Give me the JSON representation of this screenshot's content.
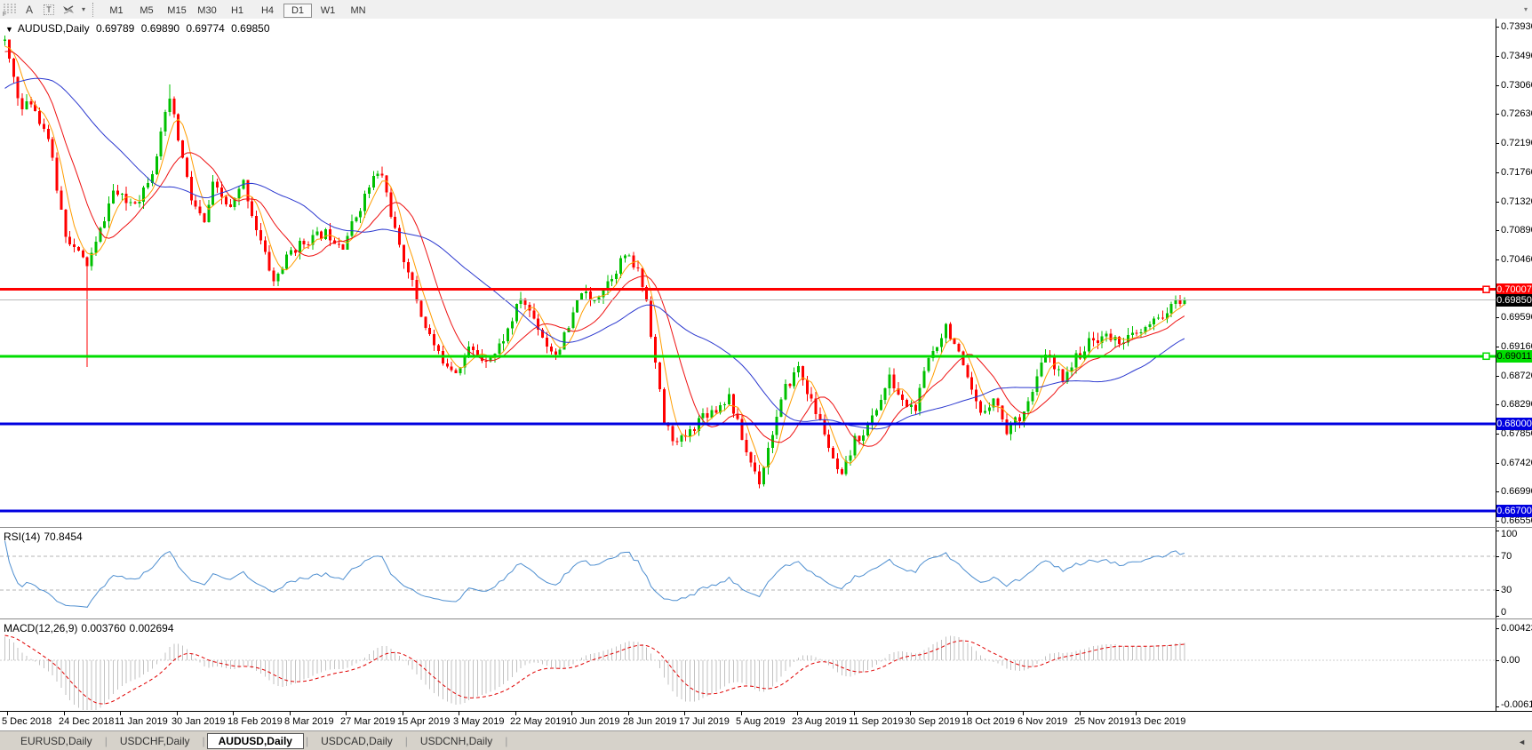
{
  "toolbar": {
    "icons": [
      {
        "name": "fibonacci-grid-icon",
        "badge": "F"
      },
      {
        "name": "text-icon",
        "glyph": "A"
      },
      {
        "name": "text-label-icon",
        "glyph": "T"
      },
      {
        "name": "arrow-objects-icon",
        "glyph": "arrows"
      }
    ],
    "dropdown_caret": "▾",
    "timeframes": [
      "M1",
      "M5",
      "M15",
      "M30",
      "H1",
      "H4",
      "D1",
      "W1",
      "MN"
    ],
    "active_timeframe": "D1",
    "overflow_caret": "▾"
  },
  "chart": {
    "menu_caret": "▼",
    "symbol_title": "AUDUSD,Daily",
    "ohlc": {
      "open": "0.69789",
      "high": "0.69890",
      "low": "0.69774",
      "close": "0.69850"
    },
    "price_ticks": [
      "0.73930",
      "0.73490",
      "0.73060",
      "0.72630",
      "0.72190",
      "0.71760",
      "0.71320",
      "0.70890",
      "0.70460",
      "0.69590",
      "0.69160",
      "0.68720",
      "0.68290",
      "0.67850",
      "0.67420",
      "0.66990",
      "0.66550"
    ],
    "hlines": [
      {
        "price": 0.70007,
        "label": "0.70007",
        "color": "#ff0000",
        "text_color": "#ffffff",
        "thickness": 3,
        "marker": true
      },
      {
        "price": 0.69011,
        "label": "0.69011",
        "color": "#00dd00",
        "text_color": "#000000",
        "thickness": 3,
        "marker": true
      },
      {
        "price": 0.68,
        "label": "0.68000",
        "color": "#0000e0",
        "text_color": "#ffffff",
        "thickness": 3,
        "marker": false
      },
      {
        "price": 0.667,
        "label": "0.66700",
        "color": "#0000e0",
        "text_color": "#ffffff",
        "thickness": 3,
        "marker": false
      }
    ],
    "last_price": {
      "value": 0.6985,
      "label": "0.69850",
      "line_color": "#b8b8b8",
      "badge_bg": "#000000",
      "badge_text": "#ffffff"
    },
    "candle_up_color": "#00c000",
    "candle_down_color": "#ff0000",
    "ma_lines": [
      {
        "name": "fast-ma",
        "period": 5,
        "color": "#ff9d00"
      },
      {
        "name": "mid-ma",
        "period": 12,
        "color": "#ee1111"
      },
      {
        "name": "slow-ma",
        "period": 34,
        "color": "#2b38cf"
      }
    ],
    "series": {
      "count": 273,
      "warmup_anchors": [
        [
          -45,
          0.7155
        ],
        [
          -35,
          0.7185
        ],
        [
          -25,
          0.7255
        ],
        [
          -15,
          0.732
        ],
        [
          -6,
          0.7355
        ],
        [
          -1,
          0.7368
        ]
      ],
      "anchors": [
        [
          0,
          0.7368
        ],
        [
          2,
          0.7318
        ],
        [
          4,
          0.7268
        ],
        [
          6,
          0.7282
        ],
        [
          8,
          0.7255
        ],
        [
          10,
          0.7228
        ],
        [
          12,
          0.7152
        ],
        [
          14,
          0.7085
        ],
        [
          16,
          0.7062
        ],
        [
          18,
          0.7045
        ],
        [
          19,
          0.7038
        ],
        [
          21,
          0.7068
        ],
        [
          25,
          0.7148
        ],
        [
          28,
          0.713
        ],
        [
          31,
          0.7138
        ],
        [
          34,
          0.718
        ],
        [
          36,
          0.723
        ],
        [
          38,
          0.7285
        ],
        [
          40,
          0.7225
        ],
        [
          43,
          0.7135
        ],
        [
          46,
          0.7098
        ],
        [
          48,
          0.7155
        ],
        [
          52,
          0.712
        ],
        [
          55,
          0.716
        ],
        [
          58,
          0.7092
        ],
        [
          62,
          0.7012
        ],
        [
          66,
          0.7058
        ],
        [
          70,
          0.7075
        ],
        [
          74,
          0.7085
        ],
        [
          78,
          0.7068
        ],
        [
          82,
          0.7125
        ],
        [
          85,
          0.7168
        ],
        [
          87,
          0.7172
        ],
        [
          89,
          0.7115
        ],
        [
          91,
          0.706
        ],
        [
          93,
          0.7032
        ],
        [
          96,
          0.6962
        ],
        [
          100,
          0.6902
        ],
        [
          104,
          0.688
        ],
        [
          107,
          0.6912
        ],
        [
          110,
          0.6898
        ],
        [
          113,
          0.6905
        ],
        [
          116,
          0.694
        ],
        [
          119,
          0.6988
        ],
        [
          122,
          0.6958
        ],
        [
          125,
          0.6918
        ],
        [
          127,
          0.6905
        ],
        [
          130,
          0.6942
        ],
        [
          133,
          0.7
        ],
        [
          135,
          0.6982
        ],
        [
          137,
          0.6995
        ],
        [
          140,
          0.7022
        ],
        [
          143,
          0.7052
        ],
        [
          146,
          0.7028
        ],
        [
          148,
          0.6985
        ],
        [
          150,
          0.689
        ],
        [
          152,
          0.6802
        ],
        [
          155,
          0.677
        ],
        [
          158,
          0.6788
        ],
        [
          161,
          0.6815
        ],
        [
          164,
          0.6822
        ],
        [
          167,
          0.6842
        ],
        [
          169,
          0.68
        ],
        [
          171,
          0.6758
        ],
        [
          174,
          0.6715
        ],
        [
          177,
          0.6788
        ],
        [
          180,
          0.6852
        ],
        [
          183,
          0.6885
        ],
        [
          186,
          0.6832
        ],
        [
          189,
          0.6788
        ],
        [
          191,
          0.6742
        ],
        [
          193,
          0.6718
        ],
        [
          196,
          0.6775
        ],
        [
          199,
          0.6795
        ],
        [
          202,
          0.6838
        ],
        [
          204,
          0.6868
        ],
        [
          207,
          0.6832
        ],
        [
          210,
          0.6822
        ],
        [
          213,
          0.6898
        ],
        [
          215,
          0.692
        ],
        [
          217,
          0.6948
        ],
        [
          219,
          0.692
        ],
        [
          222,
          0.6862
        ],
        [
          225,
          0.6812
        ],
        [
          228,
          0.6842
        ],
        [
          231,
          0.679
        ],
        [
          234,
          0.6812
        ],
        [
          237,
          0.6845
        ],
        [
          240,
          0.6908
        ],
        [
          242,
          0.688
        ],
        [
          244,
          0.687
        ],
        [
          247,
          0.6898
        ],
        [
          250,
          0.692
        ],
        [
          253,
          0.6932
        ],
        [
          256,
          0.6925
        ],
        [
          259,
          0.6928
        ],
        [
          262,
          0.6935
        ],
        [
          265,
          0.6952
        ],
        [
          268,
          0.6968
        ],
        [
          270,
          0.6979
        ],
        [
          272,
          0.6985
        ]
      ],
      "events": {
        "long_lower_wick_index": 19,
        "wick_low": 0.6885,
        "spike_high_index": 38,
        "spike_high": 0.7307
      }
    }
  },
  "rsi": {
    "label": "RSI(14)",
    "value": "70.8454",
    "ticks": [
      "100",
      "70",
      "30",
      "0"
    ],
    "tick_values": [
      100,
      70,
      30,
      0
    ],
    "dashed_levels": [
      70,
      30
    ],
    "line_color": "#4f8fd0"
  },
  "macd": {
    "label": "MACD(12,26,9)",
    "value_main": "0.003760",
    "value_signal": "0.002694",
    "ticks": [
      "0.00423",
      "0.00",
      "-0.00610"
    ],
    "tick_values": [
      0.00423,
      0,
      -0.0061
    ],
    "hist_color": "#c2c2c2",
    "signal_color": "#e00000"
  },
  "date_axis": {
    "labels": [
      "5 Dec 2018",
      "24 Dec 2018",
      "11 Jan 2019",
      "30 Jan 2019",
      "18 Feb 2019",
      "8 Mar 2019",
      "27 Mar 2019",
      "15 Apr 2019",
      "3 May 2019",
      "22 May 2019",
      "10 Jun 2019",
      "28 Jun 2019",
      "17 Jul 2019",
      "5 Aug 2019",
      "23 Aug 2019",
      "11 Sep 2019",
      "30 Sep 2019",
      "18 Oct 2019",
      "6 Nov 2019",
      "25 Nov 2019",
      "13 Dec 2019"
    ]
  },
  "tabs": {
    "items": [
      "EURUSD,Daily",
      "USDCHF,Daily",
      "AUDUSD,Daily",
      "USDCAD,Daily",
      "USDCNH,Daily"
    ],
    "active": "AUDUSD,Daily",
    "scroll_icon": "◄"
  }
}
